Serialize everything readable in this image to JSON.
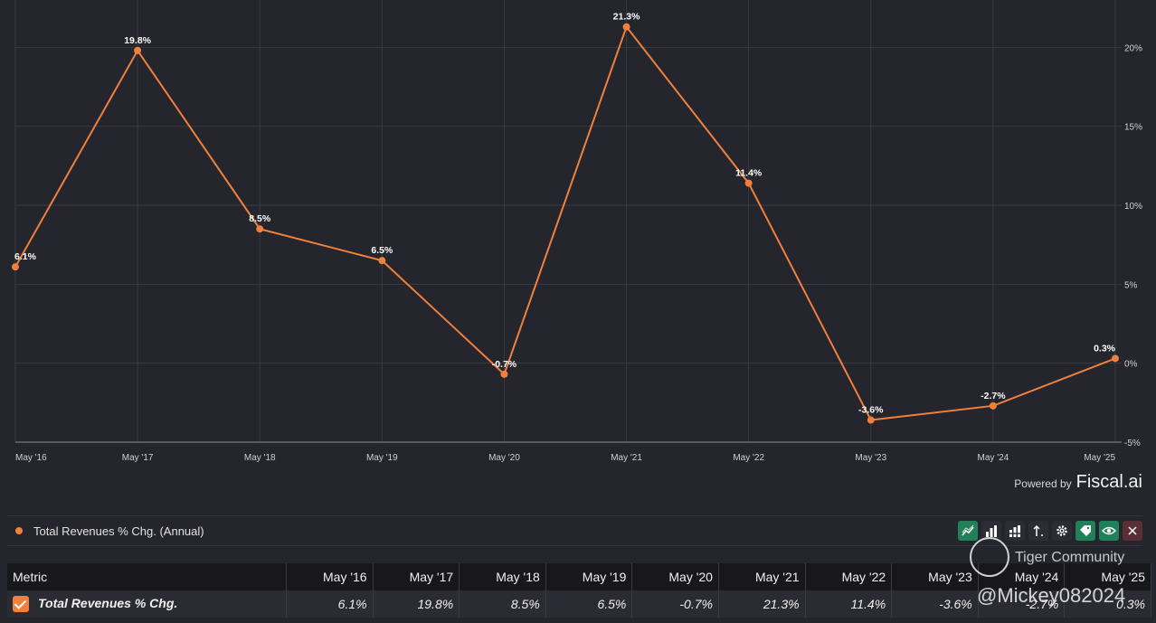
{
  "chart_data": {
    "type": "line",
    "categories": [
      "May '16",
      "May '17",
      "May '18",
      "May '19",
      "May '20",
      "May '21",
      "May '22",
      "May '23",
      "May '24",
      "May '25"
    ],
    "series": [
      {
        "name": "Total Revenues % Chg. (Annual)",
        "values": [
          6.1,
          19.8,
          8.5,
          6.5,
          -0.7,
          21.3,
          11.4,
          -3.6,
          -2.7,
          0.3
        ]
      }
    ],
    "data_labels": [
      "6.1%",
      "19.8%",
      "8.5%",
      "6.5%",
      "-0.7%",
      "21.3%",
      "11.4%",
      "-3.6%",
      "-2.7%",
      "0.3%"
    ],
    "y_ticks": [
      20,
      15,
      10,
      5,
      0,
      -5
    ],
    "y_tick_labels": [
      "20%",
      "15%",
      "10%",
      "5%",
      "0%",
      "-5%"
    ],
    "ylim": [
      -5,
      23
    ],
    "y_axis_position": "right",
    "grid": true,
    "line_color": "#f0803c"
  },
  "branding": {
    "powered_by": "Powered by",
    "brand": "Fiscal.ai"
  },
  "legend": {
    "label": "Total Revenues % Chg. (Annual)",
    "color": "#f0803c"
  },
  "toolbar": {
    "icons": [
      "line-chart-icon",
      "bar-chart-icon",
      "stacked-bar-icon",
      "sort-icon",
      "gear-icon",
      "tag-icon",
      "eye-icon",
      "close-icon"
    ]
  },
  "table": {
    "headers": [
      "Metric",
      "May '16",
      "May '17",
      "May '18",
      "May '19",
      "May '20",
      "May '21",
      "May '22",
      "May '23",
      "May '24",
      "May '25"
    ],
    "row": {
      "metric": "Total Revenues % Chg.",
      "values": [
        "6.1%",
        "19.8%",
        "8.5%",
        "6.5%",
        "-0.7%",
        "21.3%",
        "11.4%",
        "-3.6%",
        "-2.7%",
        "0.3%"
      ],
      "check_color": "#f0803c"
    }
  },
  "watermark": {
    "title": "Tiger Community",
    "handle": "@Mickey082024"
  }
}
